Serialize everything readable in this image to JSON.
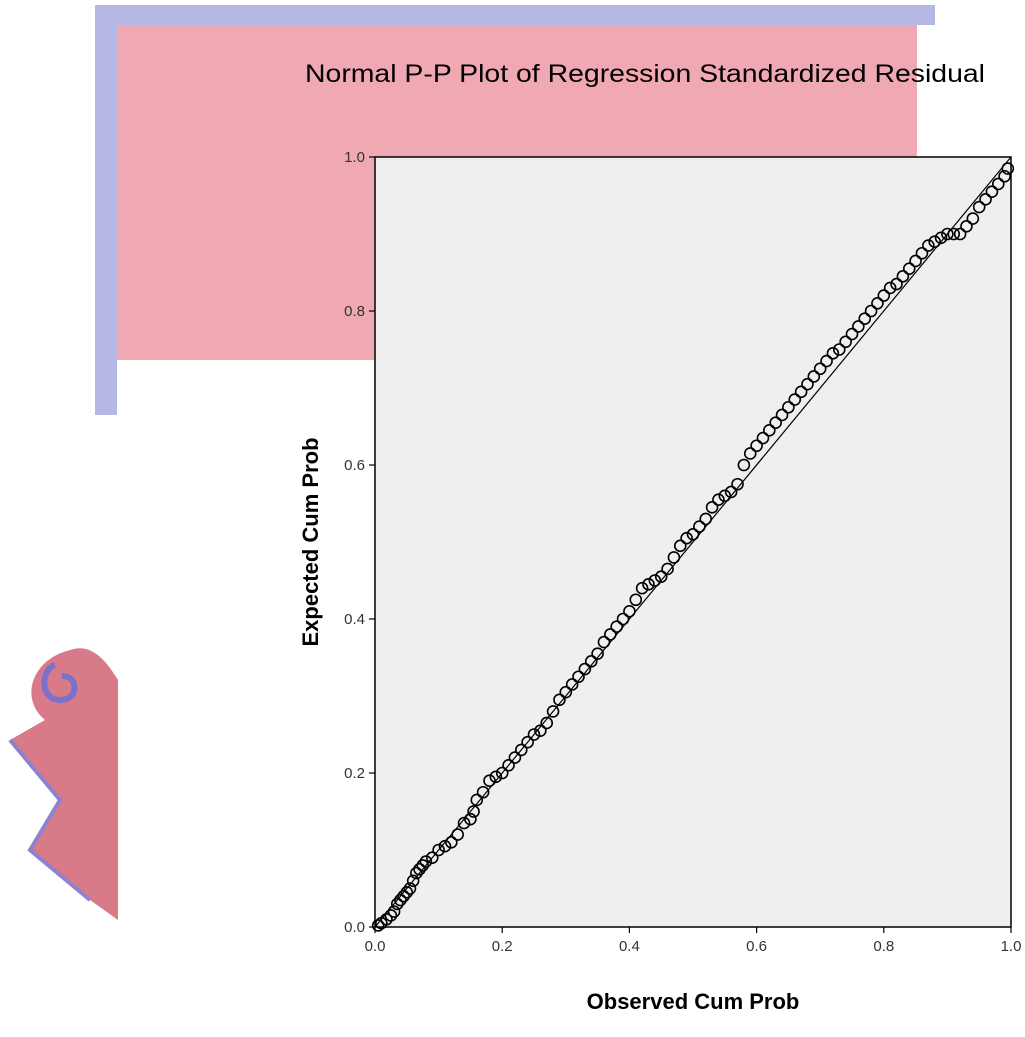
{
  "chart_data": {
    "type": "scatter",
    "title": "Normal P-P Plot of Regression Standardized Residual",
    "xlabel": "Observed Cum Prob",
    "ylabel": "Expected Cum Prob",
    "xlim": [
      0,
      1
    ],
    "ylim": [
      0,
      1
    ],
    "xticks": [
      "0.0",
      "0.2",
      "0.4",
      "0.6",
      "0.8",
      "1.0"
    ],
    "yticks": [
      "0.0",
      "0.2",
      "0.4",
      "0.6",
      "0.8",
      "1.0"
    ],
    "grid": false,
    "plot_background": "#efefef",
    "marker": "open-circle",
    "marker_color": "#000000",
    "reference_line": {
      "from": [
        0,
        0
      ],
      "to": [
        1,
        1
      ]
    },
    "series": [
      {
        "points": [
          [
            0.005,
            0.002
          ],
          [
            0.01,
            0.005
          ],
          [
            0.018,
            0.01
          ],
          [
            0.025,
            0.015
          ],
          [
            0.03,
            0.02
          ],
          [
            0.035,
            0.03
          ],
          [
            0.04,
            0.035
          ],
          [
            0.045,
            0.04
          ],
          [
            0.05,
            0.045
          ],
          [
            0.055,
            0.05
          ],
          [
            0.06,
            0.06
          ],
          [
            0.065,
            0.07
          ],
          [
            0.07,
            0.075
          ],
          [
            0.075,
            0.08
          ],
          [
            0.08,
            0.085
          ],
          [
            0.09,
            0.09
          ],
          [
            0.1,
            0.1
          ],
          [
            0.11,
            0.105
          ],
          [
            0.12,
            0.11
          ],
          [
            0.13,
            0.12
          ],
          [
            0.14,
            0.135
          ],
          [
            0.15,
            0.14
          ],
          [
            0.155,
            0.15
          ],
          [
            0.16,
            0.165
          ],
          [
            0.17,
            0.175
          ],
          [
            0.18,
            0.19
          ],
          [
            0.19,
            0.195
          ],
          [
            0.2,
            0.2
          ],
          [
            0.21,
            0.21
          ],
          [
            0.22,
            0.22
          ],
          [
            0.23,
            0.23
          ],
          [
            0.24,
            0.24
          ],
          [
            0.25,
            0.25
          ],
          [
            0.26,
            0.255
          ],
          [
            0.27,
            0.265
          ],
          [
            0.28,
            0.28
          ],
          [
            0.29,
            0.295
          ],
          [
            0.3,
            0.305
          ],
          [
            0.31,
            0.315
          ],
          [
            0.32,
            0.325
          ],
          [
            0.33,
            0.335
          ],
          [
            0.34,
            0.345
          ],
          [
            0.35,
            0.355
          ],
          [
            0.36,
            0.37
          ],
          [
            0.37,
            0.38
          ],
          [
            0.38,
            0.39
          ],
          [
            0.39,
            0.4
          ],
          [
            0.4,
            0.41
          ],
          [
            0.41,
            0.425
          ],
          [
            0.42,
            0.44
          ],
          [
            0.43,
            0.445
          ],
          [
            0.44,
            0.45
          ],
          [
            0.45,
            0.455
          ],
          [
            0.46,
            0.465
          ],
          [
            0.47,
            0.48
          ],
          [
            0.48,
            0.495
          ],
          [
            0.49,
            0.505
          ],
          [
            0.5,
            0.51
          ],
          [
            0.51,
            0.52
          ],
          [
            0.52,
            0.53
          ],
          [
            0.53,
            0.545
          ],
          [
            0.54,
            0.555
          ],
          [
            0.55,
            0.56
          ],
          [
            0.56,
            0.565
          ],
          [
            0.57,
            0.575
          ],
          [
            0.58,
            0.6
          ],
          [
            0.59,
            0.615
          ],
          [
            0.6,
            0.625
          ],
          [
            0.61,
            0.635
          ],
          [
            0.62,
            0.645
          ],
          [
            0.63,
            0.655
          ],
          [
            0.64,
            0.665
          ],
          [
            0.65,
            0.675
          ],
          [
            0.66,
            0.685
          ],
          [
            0.67,
            0.695
          ],
          [
            0.68,
            0.705
          ],
          [
            0.69,
            0.715
          ],
          [
            0.7,
            0.725
          ],
          [
            0.71,
            0.735
          ],
          [
            0.72,
            0.745
          ],
          [
            0.73,
            0.75
          ],
          [
            0.74,
            0.76
          ],
          [
            0.75,
            0.77
          ],
          [
            0.76,
            0.78
          ],
          [
            0.77,
            0.79
          ],
          [
            0.78,
            0.8
          ],
          [
            0.79,
            0.81
          ],
          [
            0.8,
            0.82
          ],
          [
            0.81,
            0.83
          ],
          [
            0.82,
            0.835
          ],
          [
            0.83,
            0.845
          ],
          [
            0.84,
            0.855
          ],
          [
            0.85,
            0.865
          ],
          [
            0.86,
            0.875
          ],
          [
            0.87,
            0.885
          ],
          [
            0.88,
            0.89
          ],
          [
            0.89,
            0.895
          ],
          [
            0.9,
            0.9
          ],
          [
            0.91,
            0.9
          ],
          [
            0.92,
            0.9
          ],
          [
            0.93,
            0.91
          ],
          [
            0.94,
            0.92
          ],
          [
            0.95,
            0.935
          ],
          [
            0.96,
            0.945
          ],
          [
            0.97,
            0.955
          ],
          [
            0.98,
            0.965
          ],
          [
            0.99,
            0.975
          ],
          [
            0.995,
            0.985
          ]
        ]
      }
    ]
  }
}
